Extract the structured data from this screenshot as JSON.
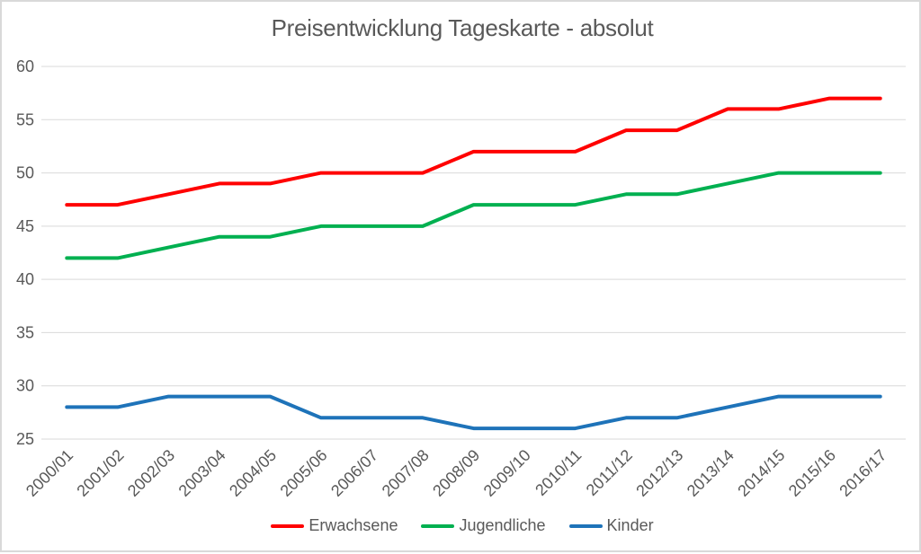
{
  "chart_data": {
    "type": "line",
    "title": "Preisentwicklung Tageskarte - absolut",
    "categories": [
      "2000/01",
      "2001/02",
      "2002/03",
      "2003/04",
      "2004/05",
      "2005/06",
      "2006/07",
      "2007/08",
      "2008/09",
      "2009/10",
      "2010/11",
      "2011/12",
      "2012/13",
      "2013/14",
      "2014/15",
      "2015/16",
      "2016/17"
    ],
    "series": [
      {
        "name": "Erwachsene",
        "color": "#ff0000",
        "values": [
          47,
          47,
          48,
          49,
          49,
          50,
          50,
          50,
          52,
          52,
          52,
          54,
          54,
          56,
          56,
          57,
          57
        ]
      },
      {
        "name": "Jugendliche",
        "color": "#00b050",
        "values": [
          42,
          42,
          43,
          44,
          44,
          45,
          45,
          45,
          47,
          47,
          47,
          48,
          48,
          49,
          50,
          50,
          50
        ]
      },
      {
        "name": "Kinder",
        "color": "#1e73b9",
        "values": [
          28,
          28,
          29,
          29,
          29,
          27,
          27,
          27,
          26,
          26,
          26,
          27,
          27,
          28,
          29,
          29,
          29
        ]
      }
    ],
    "ylim": [
      25,
      60
    ],
    "yticks": [
      60,
      55,
      50,
      45,
      40,
      35,
      30,
      25
    ],
    "grid": true,
    "legend_position": "bottom",
    "x_label_rotation": -45,
    "xlabel": "",
    "ylabel": "",
    "colors": {
      "axis_text": "#595959",
      "title_text": "#595959",
      "gridline": "#d9d9d9",
      "frame_border": "#d9d9d9",
      "background": "#ffffff"
    }
  }
}
